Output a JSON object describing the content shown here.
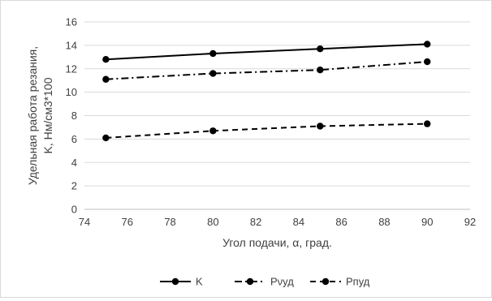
{
  "chart_data": {
    "type": "line",
    "xlabel": "Угол подачи, α, град.",
    "ylabel_lines": [
      "Удельная работа резания,",
      "K, Нм/см3*100"
    ],
    "xlim": [
      74,
      92
    ],
    "ylim": [
      0,
      16
    ],
    "x_ticks": [
      74,
      76,
      78,
      80,
      82,
      84,
      86,
      88,
      90,
      92
    ],
    "y_ticks": [
      0,
      2,
      4,
      6,
      8,
      10,
      12,
      14,
      16
    ],
    "grid": "horizontal",
    "legend_position": "bottom",
    "x": [
      75,
      80,
      85,
      90
    ],
    "series": [
      {
        "name": "K",
        "values": [
          12.8,
          13.3,
          13.7,
          14.1
        ],
        "dash": "solid",
        "color": "#000000"
      },
      {
        "name": "Pνуд",
        "values": [
          11.1,
          11.6,
          11.9,
          12.6
        ],
        "dash": "dashdot",
        "color": "#000000"
      },
      {
        "name": "Pпуд",
        "values": [
          6.1,
          6.7,
          7.1,
          7.3
        ],
        "dash": "dashed",
        "color": "#000000"
      }
    ]
  }
}
